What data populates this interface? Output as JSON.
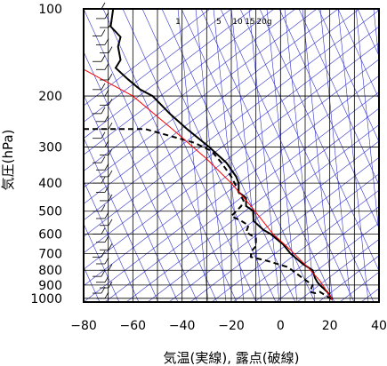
{
  "chart_data": {
    "type": "line",
    "xlabel": "気温(実線), 露点(破線)",
    "ylabel": "気圧(hPa)",
    "xlim": [
      -80,
      40
    ],
    "ylim": [
      1030,
      100
    ],
    "y_scale": "log",
    "grid": true,
    "x_ticks": [
      -80,
      -60,
      -40,
      -20,
      0,
      20,
      40
    ],
    "y_ticks": [
      100,
      200,
      300,
      400,
      500,
      600,
      700,
      800,
      900,
      1000
    ],
    "mixing_ratio_labels": [
      "1",
      "5",
      "10",
      "15",
      "20g"
    ],
    "colors": {
      "temperature": "#000000",
      "dewpoint": "#000000",
      "parcel": "#ff0000",
      "isotherm_guides": "#3333cc",
      "grid": "#000000"
    },
    "series": [
      {
        "key": "temperature",
        "style": "solid",
        "points": [
          [
            -68,
            100
          ],
          [
            -69,
            115
          ],
          [
            -65,
            125
          ],
          [
            -66,
            135
          ],
          [
            -65,
            150
          ],
          [
            -67,
            160
          ],
          [
            -62,
            175
          ],
          [
            -57,
            190
          ],
          [
            -52,
            200
          ],
          [
            -45,
            230
          ],
          [
            -38,
            260
          ],
          [
            -29,
            300
          ],
          [
            -22,
            340
          ],
          [
            -18,
            380
          ],
          [
            -17,
            400
          ],
          [
            -17,
            430
          ],
          [
            -14,
            450
          ],
          [
            -14,
            480
          ],
          [
            -11,
            500
          ],
          [
            -11,
            540
          ],
          [
            -7,
            580
          ],
          [
            -4,
            600
          ],
          [
            0,
            640
          ],
          [
            1,
            650
          ],
          [
            4,
            700
          ],
          [
            9,
            760
          ],
          [
            13,
            800
          ],
          [
            14,
            850
          ],
          [
            15,
            880
          ],
          [
            16,
            900
          ],
          [
            19,
            950
          ],
          [
            21,
            1010
          ]
        ]
      },
      {
        "key": "dewpoint",
        "style": "dashed",
        "points": [
          [
            -80,
            260
          ],
          [
            -55,
            260
          ],
          [
            -35,
            290
          ],
          [
            -28,
            310
          ],
          [
            -24,
            340
          ],
          [
            -20,
            380
          ],
          [
            -18,
            410
          ],
          [
            -17,
            430
          ],
          [
            -15,
            460
          ],
          [
            -16,
            480
          ],
          [
            -20,
            520
          ],
          [
            -16,
            540
          ],
          [
            -13,
            560
          ],
          [
            -14,
            590
          ],
          [
            -10,
            620
          ],
          [
            -10,
            660
          ],
          [
            -12,
            690
          ],
          [
            -12,
            720
          ],
          [
            -6,
            740
          ],
          [
            3,
            780
          ],
          [
            8,
            840
          ],
          [
            13,
            900
          ],
          [
            12,
            950
          ],
          [
            14,
            960
          ],
          [
            16,
            950
          ],
          [
            21,
            1010
          ]
        ]
      },
      {
        "key": "parcel",
        "style": "solid",
        "points": [
          [
            -81,
            160
          ],
          [
            -60,
            200
          ],
          [
            -44,
            260
          ],
          [
            -30,
            330
          ],
          [
            -20,
            400
          ],
          [
            -12,
            480
          ],
          [
            -3,
            600
          ],
          [
            4,
            680
          ],
          [
            11,
            780
          ],
          [
            16,
            870
          ],
          [
            21,
            1010
          ]
        ]
      }
    ],
    "wind_barbs": [
      100,
      108,
      116,
      124,
      133,
      142,
      152,
      162,
      176,
      190,
      200,
      215,
      230,
      245,
      260,
      280,
      300,
      320,
      340,
      360,
      380,
      400,
      430,
      460,
      500,
      530,
      560,
      600,
      640,
      680,
      720,
      760,
      800,
      840,
      880,
      920,
      960,
      1000
    ]
  }
}
